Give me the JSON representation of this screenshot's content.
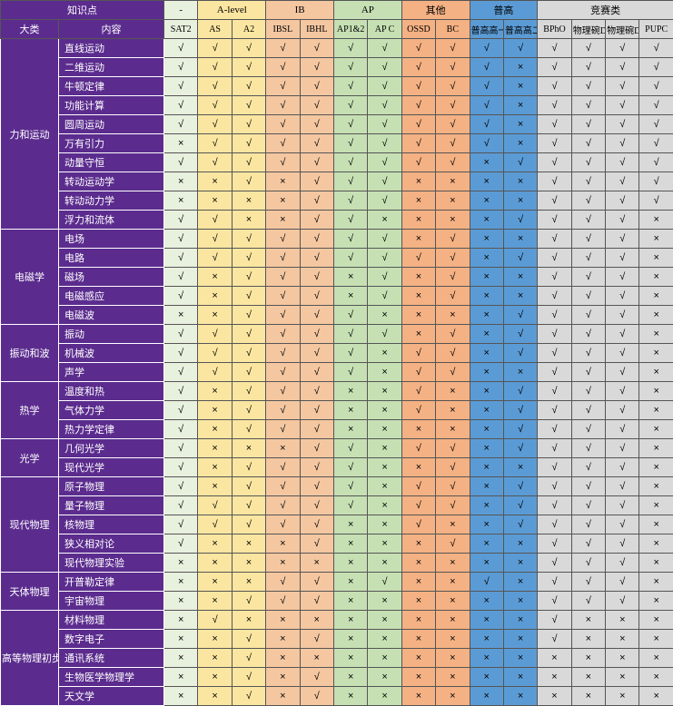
{
  "colors": {
    "purple": "#5b2c8e",
    "sat2": "#e8f0de",
    "alevel": "#fbe6a1",
    "ib": "#f4c7a1",
    "ap": "#c6e0b4",
    "other": "#f4b183",
    "cn": "#5b9bd5",
    "comp": "#d9d9d9",
    "border": "#555555"
  },
  "header": {
    "knowledge_label": "知识点",
    "cat_label": "大类",
    "content_label": "内容",
    "groups": [
      {
        "label": "-",
        "span": 1,
        "cls": "grp-sat2",
        "cols": [
          "SAT2"
        ]
      },
      {
        "label": "A-level",
        "span": 2,
        "cls": "grp-alev",
        "cols": [
          "AS",
          "A2"
        ]
      },
      {
        "label": "IB",
        "span": 2,
        "cls": "grp-ib",
        "cols": [
          "IBSL",
          "IBHL"
        ]
      },
      {
        "label": "AP",
        "span": 2,
        "cls": "grp-ap",
        "cols": [
          "AP1&2",
          "AP C"
        ]
      },
      {
        "label": "其他",
        "span": 2,
        "cls": "grp-other",
        "cols": [
          "OSSD",
          "BC"
        ]
      },
      {
        "label": "普高",
        "span": 2,
        "cls": "grp-cn",
        "cols": [
          "普高高一",
          "普高高二"
        ]
      },
      {
        "label": "竞赛类",
        "span": 4,
        "cls": "grp-comp",
        "cols": [
          "BPhO",
          "物理碗D1",
          "物理碗D2",
          "PUPC"
        ]
      }
    ]
  },
  "symbols": {
    "yes": "√",
    "no": "×"
  },
  "col_classes": [
    "grp-sat2",
    "grp-alev",
    "grp-alev",
    "grp-ib",
    "grp-ib",
    "grp-ap",
    "grp-ap",
    "grp-other",
    "grp-other",
    "grp-cn",
    "grp-cn",
    "grp-comp",
    "grp-comp",
    "grp-comp",
    "grp-comp"
  ],
  "categories": [
    {
      "name": "力和运动",
      "topics": [
        {
          "name": "直线运动",
          "v": [
            1,
            1,
            1,
            1,
            1,
            1,
            1,
            1,
            1,
            1,
            1,
            1,
            1,
            1,
            1
          ]
        },
        {
          "name": "二维运动",
          "v": [
            1,
            1,
            1,
            1,
            1,
            1,
            1,
            1,
            1,
            1,
            0,
            1,
            1,
            1,
            1
          ]
        },
        {
          "name": "牛顿定律",
          "v": [
            1,
            1,
            1,
            1,
            1,
            1,
            1,
            1,
            1,
            1,
            0,
            1,
            1,
            1,
            1
          ]
        },
        {
          "name": "功能计算",
          "v": [
            1,
            1,
            1,
            1,
            1,
            1,
            1,
            1,
            1,
            1,
            0,
            1,
            1,
            1,
            1
          ]
        },
        {
          "name": "圆周运动",
          "v": [
            1,
            1,
            1,
            1,
            1,
            1,
            1,
            1,
            1,
            1,
            0,
            1,
            1,
            1,
            1
          ]
        },
        {
          "name": "万有引力",
          "v": [
            0,
            1,
            1,
            1,
            1,
            1,
            1,
            1,
            1,
            1,
            0,
            1,
            1,
            1,
            1
          ]
        },
        {
          "name": "动量守恒",
          "v": [
            1,
            1,
            1,
            1,
            1,
            1,
            1,
            1,
            1,
            0,
            1,
            1,
            1,
            1,
            1
          ]
        },
        {
          "name": "转动运动学",
          "v": [
            0,
            0,
            1,
            0,
            1,
            1,
            1,
            0,
            0,
            0,
            0,
            1,
            1,
            1,
            1
          ]
        },
        {
          "name": "转动动力学",
          "v": [
            0,
            0,
            0,
            0,
            1,
            1,
            1,
            0,
            0,
            0,
            0,
            1,
            1,
            1,
            1
          ]
        },
        {
          "name": "浮力和流体",
          "v": [
            1,
            1,
            0,
            0,
            1,
            1,
            0,
            0,
            0,
            0,
            1,
            1,
            1,
            1,
            0
          ]
        }
      ]
    },
    {
      "name": "电磁学",
      "topics": [
        {
          "name": "电场",
          "v": [
            1,
            1,
            1,
            1,
            1,
            1,
            1,
            0,
            1,
            0,
            0,
            1,
            1,
            1,
            0
          ]
        },
        {
          "name": "电路",
          "v": [
            1,
            1,
            1,
            1,
            1,
            1,
            1,
            1,
            1,
            0,
            1,
            1,
            1,
            1,
            0
          ]
        },
        {
          "name": "磁场",
          "v": [
            1,
            0,
            1,
            1,
            1,
            0,
            1,
            0,
            1,
            0,
            0,
            1,
            1,
            1,
            0
          ]
        },
        {
          "name": "电磁感应",
          "v": [
            1,
            0,
            1,
            1,
            1,
            0,
            1,
            0,
            1,
            0,
            0,
            1,
            1,
            1,
            0
          ]
        },
        {
          "name": "电磁波",
          "v": [
            0,
            0,
            1,
            1,
            1,
            1,
            0,
            0,
            0,
            0,
            1,
            1,
            1,
            1,
            0
          ]
        }
      ]
    },
    {
      "name": "振动和波",
      "topics": [
        {
          "name": "振动",
          "v": [
            1,
            1,
            1,
            1,
            1,
            1,
            1,
            0,
            1,
            0,
            1,
            1,
            1,
            1,
            0
          ]
        },
        {
          "name": "机械波",
          "v": [
            1,
            1,
            1,
            1,
            1,
            1,
            0,
            1,
            1,
            0,
            1,
            1,
            1,
            1,
            0
          ]
        },
        {
          "name": "声学",
          "v": [
            1,
            1,
            1,
            1,
            1,
            1,
            0,
            1,
            1,
            0,
            0,
            1,
            1,
            1,
            0
          ]
        }
      ]
    },
    {
      "name": "热学",
      "topics": [
        {
          "name": "温度和热",
          "v": [
            1,
            0,
            1,
            1,
            1,
            0,
            0,
            1,
            0,
            0,
            1,
            1,
            1,
            1,
            0
          ]
        },
        {
          "name": "气体力学",
          "v": [
            1,
            0,
            1,
            1,
            1,
            0,
            0,
            1,
            0,
            0,
            1,
            1,
            1,
            1,
            0
          ]
        },
        {
          "name": "热力学定律",
          "v": [
            1,
            0,
            1,
            1,
            1,
            0,
            0,
            0,
            0,
            0,
            1,
            1,
            1,
            1,
            0
          ]
        }
      ]
    },
    {
      "name": "光学",
      "topics": [
        {
          "name": "几何光学",
          "v": [
            1,
            0,
            0,
            0,
            1,
            1,
            0,
            1,
            1,
            0,
            1,
            1,
            1,
            1,
            0
          ]
        },
        {
          "name": "现代光学",
          "v": [
            1,
            0,
            1,
            1,
            1,
            1,
            0,
            0,
            1,
            0,
            0,
            1,
            1,
            1,
            0
          ]
        }
      ]
    },
    {
      "name": "现代物理",
      "topics": [
        {
          "name": "原子物理",
          "v": [
            1,
            0,
            1,
            1,
            1,
            1,
            0,
            1,
            1,
            0,
            1,
            1,
            1,
            1,
            0
          ]
        },
        {
          "name": "量子物理",
          "v": [
            1,
            1,
            1,
            1,
            1,
            1,
            0,
            1,
            1,
            0,
            1,
            1,
            1,
            1,
            0
          ]
        },
        {
          "name": "核物理",
          "v": [
            1,
            1,
            1,
            1,
            1,
            0,
            0,
            1,
            0,
            0,
            1,
            1,
            1,
            1,
            0
          ]
        },
        {
          "name": "狭义相对论",
          "v": [
            1,
            0,
            0,
            0,
            1,
            0,
            0,
            0,
            1,
            0,
            0,
            1,
            1,
            1,
            0
          ]
        },
        {
          "name": "现代物理实验",
          "v": [
            0,
            0,
            0,
            0,
            0,
            0,
            0,
            0,
            0,
            0,
            0,
            1,
            1,
            1,
            0
          ]
        }
      ]
    },
    {
      "name": "天体物理",
      "topics": [
        {
          "name": "开普勒定律",
          "v": [
            0,
            0,
            0,
            1,
            1,
            0,
            1,
            0,
            0,
            1,
            0,
            1,
            1,
            1,
            0
          ]
        },
        {
          "name": "宇宙物理",
          "v": [
            0,
            0,
            1,
            1,
            1,
            0,
            0,
            0,
            0,
            0,
            0,
            1,
            1,
            1,
            0
          ]
        }
      ]
    },
    {
      "name": "高等物理初步",
      "topics": [
        {
          "name": "材料物理",
          "v": [
            0,
            1,
            0,
            0,
            0,
            0,
            0,
            0,
            0,
            0,
            0,
            1,
            0,
            0,
            0
          ]
        },
        {
          "name": "数字电子",
          "v": [
            0,
            0,
            1,
            0,
            1,
            0,
            0,
            0,
            0,
            0,
            0,
            1,
            0,
            0,
            0
          ]
        },
        {
          "name": "通讯系统",
          "v": [
            0,
            0,
            1,
            0,
            0,
            0,
            0,
            0,
            0,
            0,
            0,
            0,
            0,
            0,
            0
          ]
        },
        {
          "name": "生物医学物理学",
          "v": [
            0,
            0,
            1,
            0,
            1,
            0,
            0,
            0,
            0,
            0,
            0,
            0,
            0,
            0,
            0
          ]
        },
        {
          "name": "天文学",
          "v": [
            0,
            0,
            1,
            0,
            1,
            0,
            0,
            0,
            0,
            0,
            0,
            0,
            0,
            0,
            0
          ]
        }
      ]
    }
  ]
}
